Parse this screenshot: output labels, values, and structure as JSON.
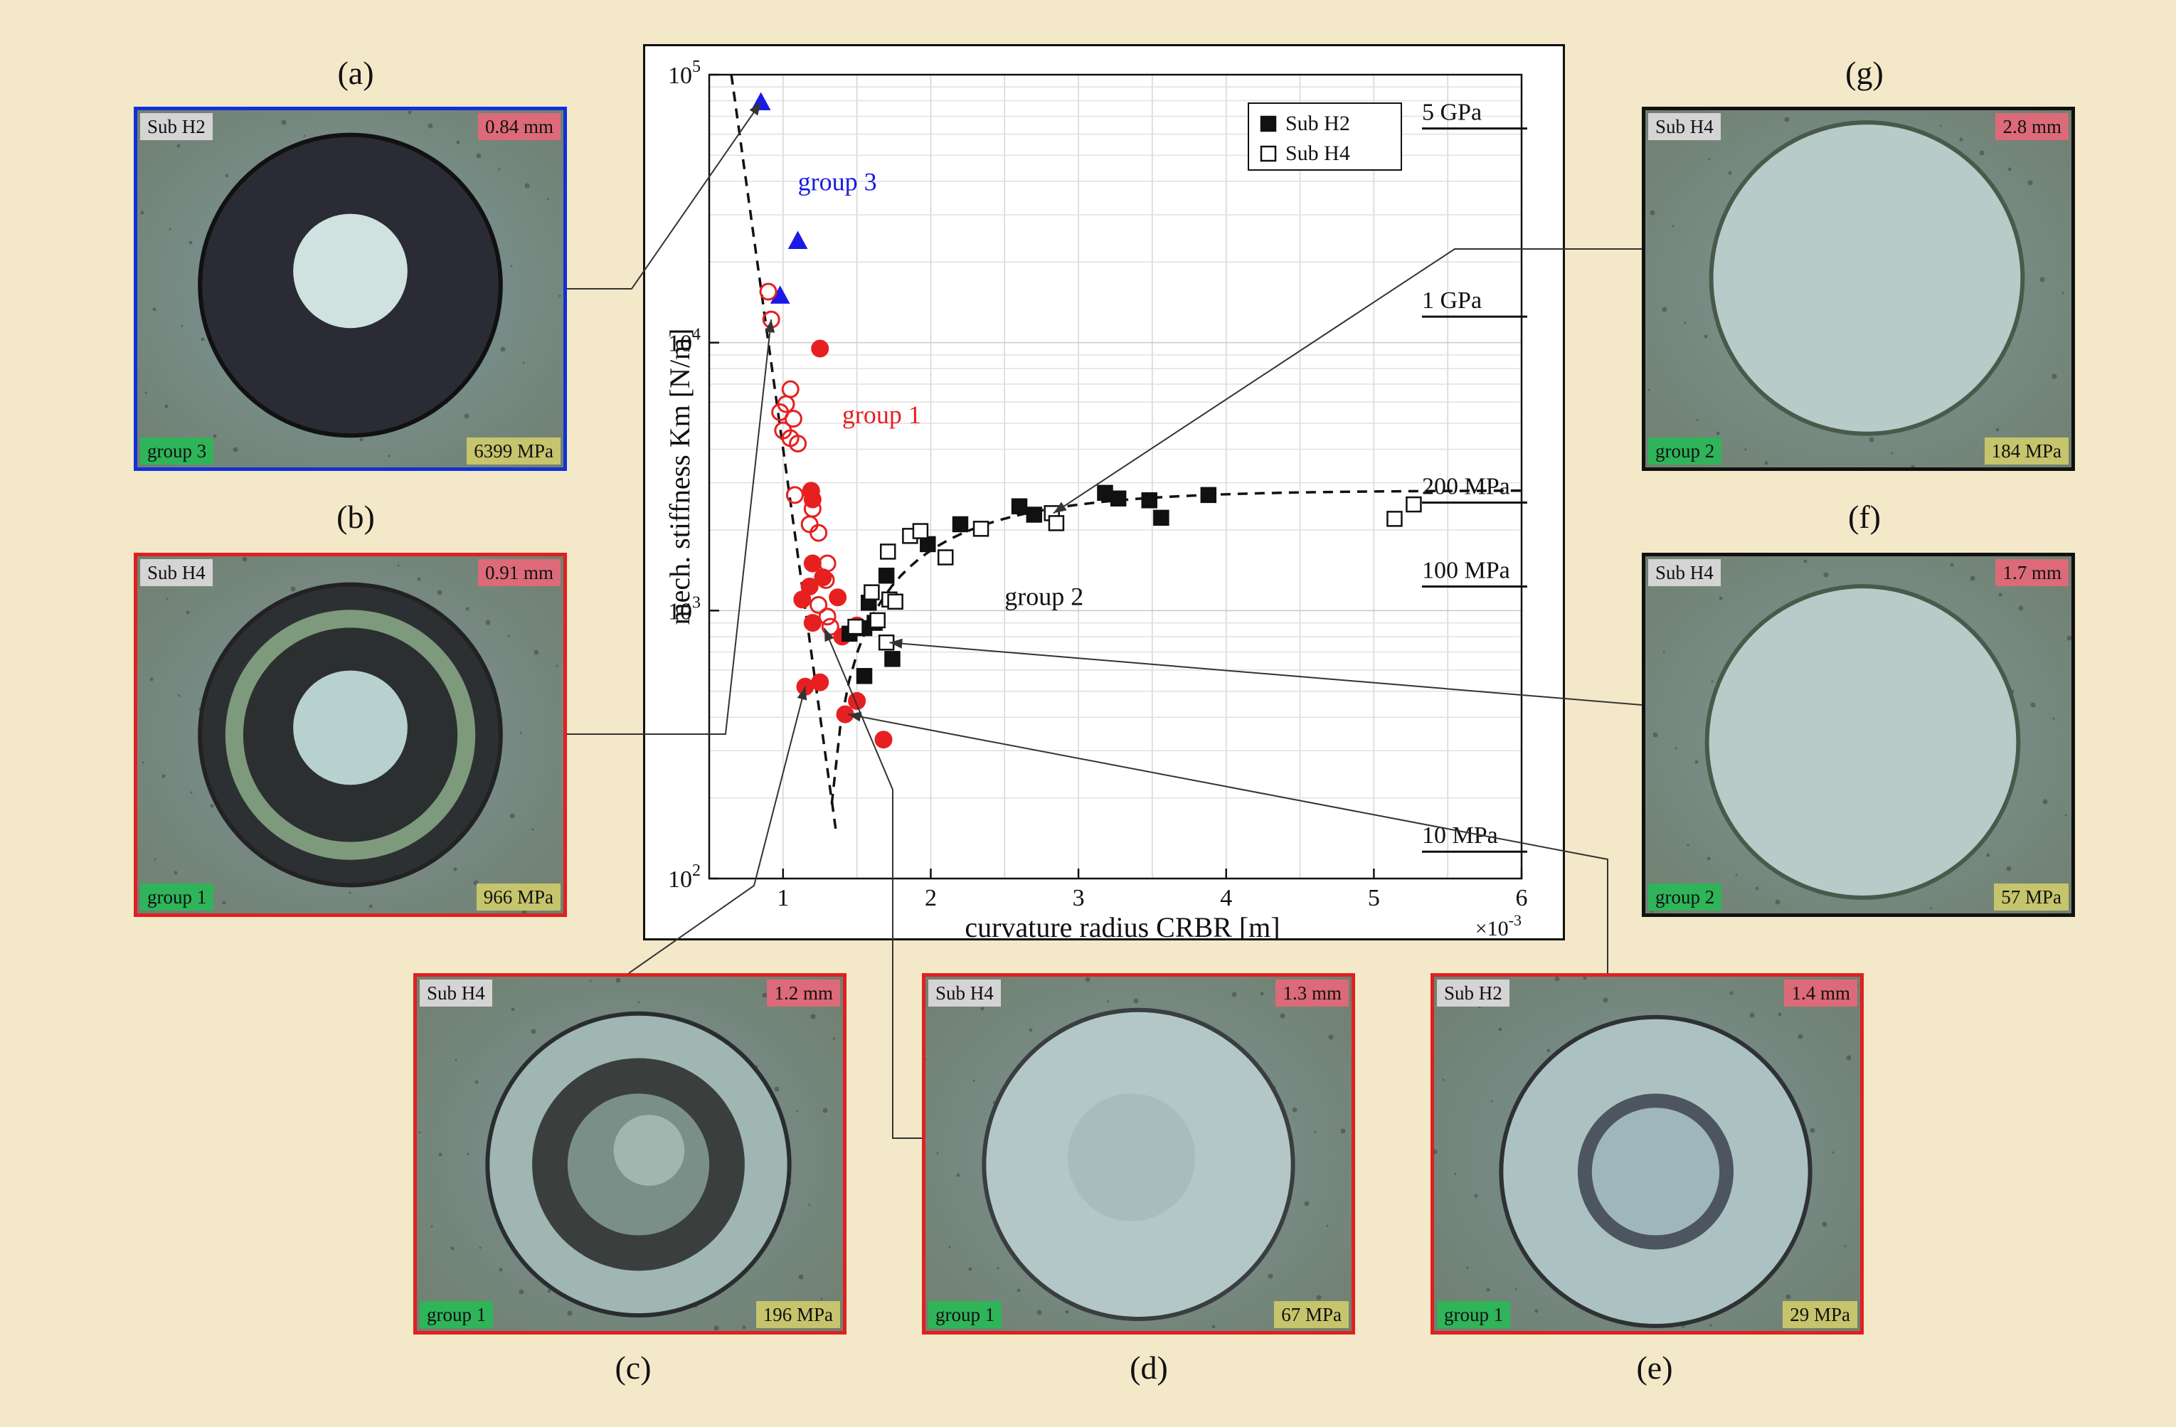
{
  "photos": [
    {
      "id": "a",
      "label": "(a)",
      "sub": "Sub H2",
      "size": "0.84 mm",
      "group": "group 3",
      "stress": "6399 MPa",
      "border": "#1030d8"
    },
    {
      "id": "b",
      "label": "(b)",
      "sub": "Sub H4",
      "size": "0.91 mm",
      "group": "group 1",
      "stress": "966 MPa",
      "border": "#e02020"
    },
    {
      "id": "c",
      "label": "(c)",
      "sub": "Sub H4",
      "size": "1.2 mm",
      "group": "group 1",
      "stress": "196 MPa",
      "border": "#e02020"
    },
    {
      "id": "d",
      "label": "(d)",
      "sub": "Sub H4",
      "size": "1.3 mm",
      "group": "group 1",
      "stress": "67 MPa",
      "border": "#e02020"
    },
    {
      "id": "e",
      "label": "(e)",
      "sub": "Sub H2",
      "size": "1.4 mm",
      "group": "group 1",
      "stress": "29 MPa",
      "border": "#e02020"
    },
    {
      "id": "f",
      "label": "(f)",
      "sub": "Sub H4",
      "size": "1.7 mm",
      "group": "group 2",
      "stress": "57 MPa",
      "border": "#111111"
    },
    {
      "id": "g",
      "label": "(g)",
      "sub": "Sub H4",
      "size": "2.8 mm",
      "group": "group 2",
      "stress": "184 MPa",
      "border": "#111111"
    }
  ],
  "chart_data": {
    "type": "scatter",
    "xlabel": "curvature radius CRBR [m]",
    "ylabel": "mech. stiffness Km [N/m]",
    "x_multiplier_label": "×10",
    "x_multiplier_exp": "-3",
    "xlim": [
      0.5,
      6
    ],
    "ylim": [
      100,
      100000
    ],
    "yscale": "log",
    "xticks": [
      1,
      2,
      3,
      4,
      5,
      6
    ],
    "yticks": [
      {
        "value": 100,
        "base": "10",
        "exp": "2"
      },
      {
        "value": 1000,
        "base": "10",
        "exp": "3"
      },
      {
        "value": 10000,
        "base": "10",
        "exp": "4"
      },
      {
        "value": 100000,
        "base": "10",
        "exp": "5"
      }
    ],
    "legend": {
      "position": "top-right",
      "entries": [
        "Sub H2",
        "Sub H4"
      ]
    },
    "stress_lines": [
      {
        "label": "5 GPa",
        "y": 63000
      },
      {
        "label": "1 GPa",
        "y": 12500
      },
      {
        "label": "200 MPa",
        "y": 2530
      },
      {
        "label": "100 MPa",
        "y": 1230
      },
      {
        "label": "10 MPa",
        "y": 126
      }
    ],
    "group_labels": [
      {
        "text": "group 3",
        "x": 1.1,
        "y": 37000,
        "color": "#1a1ae6"
      },
      {
        "text": "group 1",
        "x": 1.4,
        "y": 5000,
        "color": "#e62020"
      },
      {
        "text": "group 2",
        "x": 2.5,
        "y": 1050,
        "color": "#111111"
      }
    ],
    "series": [
      {
        "name": "group 3 (Sub H2)",
        "marker": "triangle",
        "color": "#1a1ae6",
        "filled": true,
        "points": [
          [
            0.85,
            79000
          ],
          [
            1.1,
            24000
          ],
          [
            0.98,
            15000
          ]
        ]
      },
      {
        "name": "group 1 (Sub H2)",
        "marker": "circle",
        "color": "#e62020",
        "filled": true,
        "points": [
          [
            1.25,
            9500
          ],
          [
            1.19,
            2800
          ],
          [
            1.2,
            2600
          ],
          [
            1.2,
            1500
          ],
          [
            1.27,
            1330
          ],
          [
            1.18,
            1230
          ],
          [
            1.13,
            1100
          ],
          [
            1.37,
            1120
          ],
          [
            1.2,
            900
          ],
          [
            1.5,
            880
          ],
          [
            1.4,
            800
          ],
          [
            1.25,
            540
          ],
          [
            1.15,
            520
          ],
          [
            1.5,
            460
          ],
          [
            1.42,
            410
          ],
          [
            1.68,
            330
          ]
        ]
      },
      {
        "name": "group 1 (Sub H4)",
        "marker": "circle",
        "color": "#e62020",
        "filled": false,
        "points": [
          [
            0.9,
            15500
          ],
          [
            0.92,
            12200
          ],
          [
            1.05,
            6700
          ],
          [
            1.02,
            5900
          ],
          [
            0.98,
            5500
          ],
          [
            1.07,
            5200
          ],
          [
            1.0,
            4700
          ],
          [
            1.05,
            4400
          ],
          [
            1.1,
            4200
          ],
          [
            1.08,
            2700
          ],
          [
            1.2,
            2400
          ],
          [
            1.18,
            2100
          ],
          [
            1.24,
            1950
          ],
          [
            1.3,
            1500
          ],
          [
            1.29,
            1300
          ],
          [
            1.24,
            1050
          ],
          [
            1.3,
            950
          ],
          [
            1.32,
            870
          ]
        ]
      },
      {
        "name": "group 2 (Sub H2)",
        "marker": "square",
        "color": "#111111",
        "filled": true,
        "points": [
          [
            1.45,
            820
          ],
          [
            1.55,
            860
          ],
          [
            1.58,
            1070
          ],
          [
            1.62,
            900
          ],
          [
            1.7,
            1350
          ],
          [
            1.74,
            660
          ],
          [
            1.55,
            570
          ],
          [
            1.98,
            1770
          ],
          [
            2.2,
            2100
          ],
          [
            2.6,
            2450
          ],
          [
            2.7,
            2280
          ],
          [
            3.18,
            2750
          ],
          [
            3.27,
            2620
          ],
          [
            3.48,
            2580
          ],
          [
            3.56,
            2220
          ],
          [
            3.88,
            2700
          ]
        ]
      },
      {
        "name": "group 2 (Sub H4)",
        "marker": "square",
        "color": "#111111",
        "filled": false,
        "points": [
          [
            1.49,
            870
          ],
          [
            1.6,
            1170
          ],
          [
            1.64,
            920
          ],
          [
            1.7,
            760
          ],
          [
            1.72,
            1100
          ],
          [
            1.76,
            1080
          ],
          [
            1.71,
            1660
          ],
          [
            1.86,
            1900
          ],
          [
            1.93,
            1980
          ],
          [
            2.1,
            1580
          ],
          [
            2.34,
            2020
          ],
          [
            2.82,
            2310
          ],
          [
            2.85,
            2120
          ],
          [
            5.14,
            2200
          ],
          [
            5.27,
            2490
          ]
        ]
      }
    ]
  }
}
